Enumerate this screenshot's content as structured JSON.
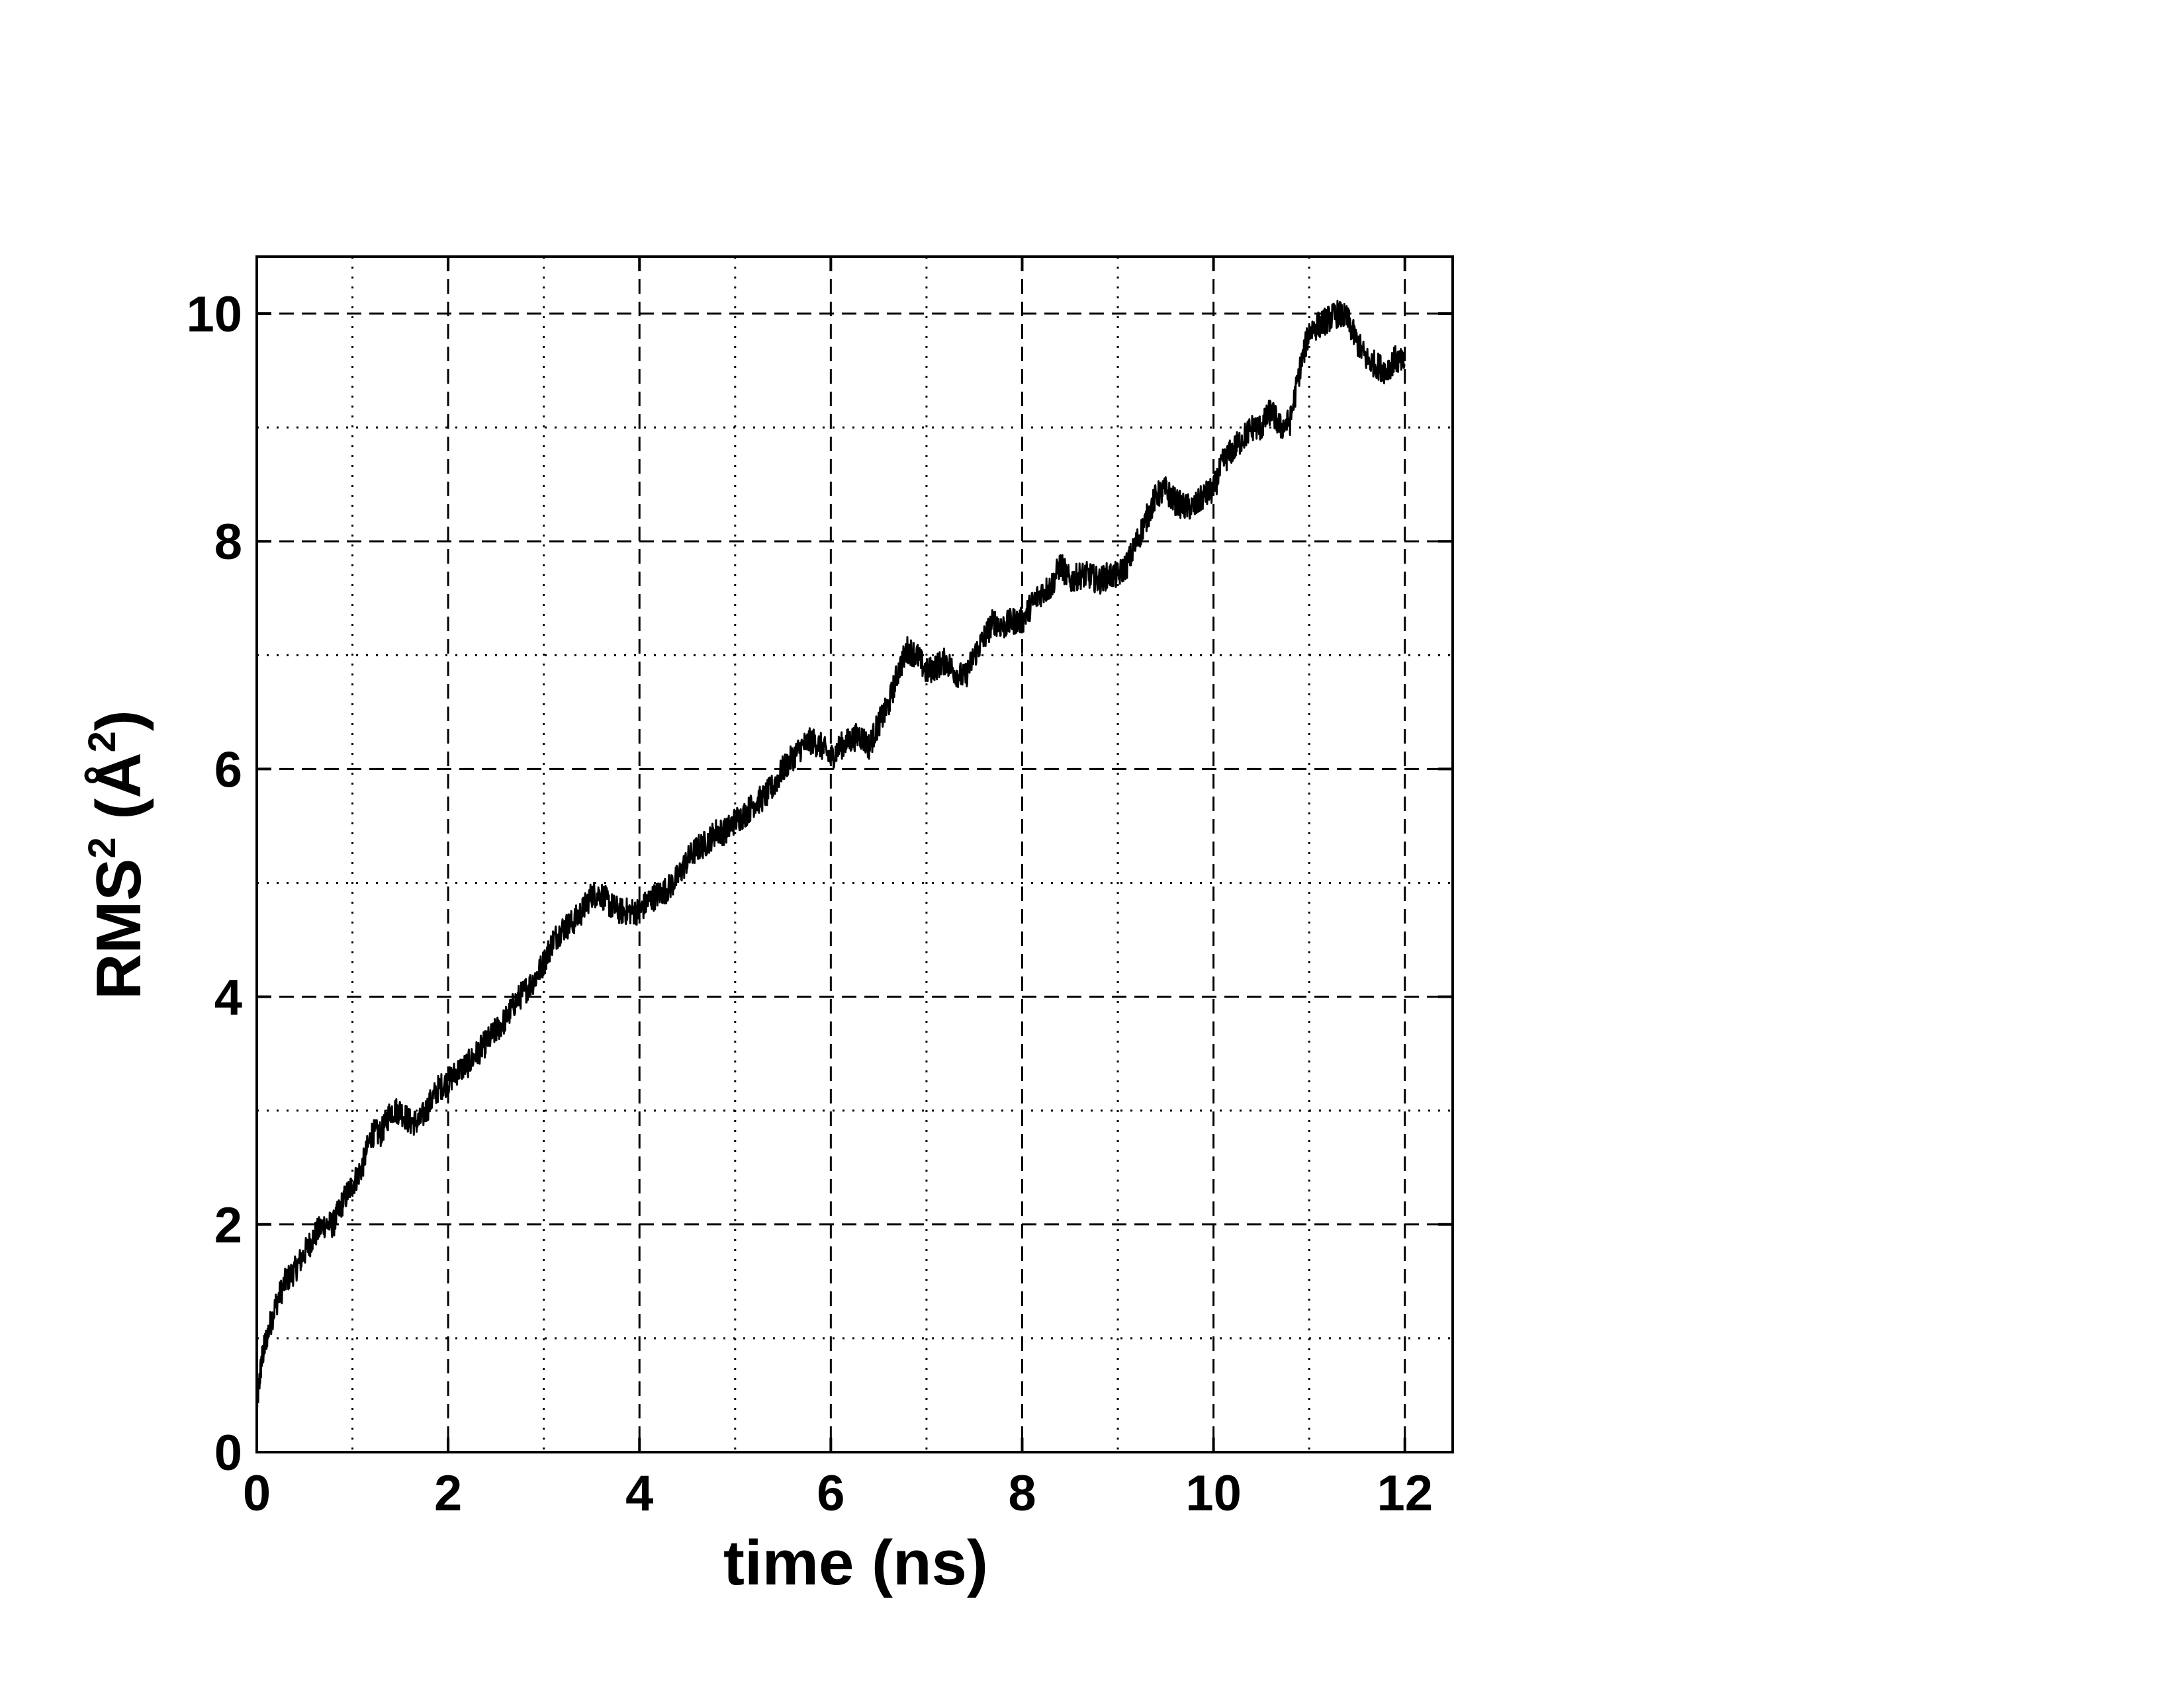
{
  "chart_data": {
    "type": "line",
    "title": "",
    "xlabel": "time (ns)",
    "ylabel": {
      "base": "RMS",
      "base_sup": "2",
      "unit": "Å",
      "unit_sup": "2"
    },
    "xlim": [
      0,
      12.5
    ],
    "ylim": [
      0,
      10.5
    ],
    "x_ticks": [
      0,
      2,
      4,
      6,
      8,
      10,
      12
    ],
    "y_ticks": [
      0,
      2,
      4,
      6,
      8,
      10
    ],
    "x_ticks_minor": [
      1,
      3,
      5,
      7,
      9,
      11
    ],
    "y_ticks_minor": [
      1,
      3,
      5,
      7,
      9
    ],
    "x_tick_labels": [
      "0",
      "2",
      "4",
      "6",
      "8",
      "10",
      "12"
    ],
    "y_tick_labels": [
      "0",
      "2",
      "4",
      "6",
      "8",
      "10"
    ],
    "grid": true,
    "grid_major_style": "dashed",
    "grid_minor_style": "dotted",
    "legend": "none",
    "line_color": "#000000",
    "series": [
      {
        "x": [
          0,
          0.05,
          0.1,
          0.2,
          0.3,
          0.4,
          0.5,
          0.6,
          0.7,
          0.8,
          0.9,
          1.0,
          1.1,
          1.2,
          1.3,
          1.4,
          1.5,
          1.6,
          1.7,
          1.8,
          1.9,
          2.0,
          2.1,
          2.2,
          2.3,
          2.4,
          2.5,
          2.6,
          2.7,
          2.8,
          2.9,
          3.0,
          3.1,
          3.2,
          3.3,
          3.4,
          3.5,
          3.6,
          3.7,
          3.8,
          3.9,
          4.0,
          4.1,
          4.2,
          4.3,
          4.4,
          4.5,
          4.6,
          4.7,
          4.8,
          4.9,
          5.0,
          5.1,
          5.2,
          5.3,
          5.4,
          5.5,
          5.6,
          5.7,
          5.8,
          5.9,
          6.0,
          6.1,
          6.2,
          6.3,
          6.4,
          6.5,
          6.6,
          6.7,
          6.8,
          6.9,
          7.0,
          7.1,
          7.2,
          7.3,
          7.4,
          7.5,
          7.6,
          7.7,
          7.8,
          7.9,
          8.0,
          8.1,
          8.2,
          8.3,
          8.4,
          8.5,
          8.6,
          8.7,
          8.8,
          8.9,
          9.0,
          9.1,
          9.2,
          9.3,
          9.4,
          9.5,
          9.6,
          9.7,
          9.8,
          9.9,
          10.0,
          10.1,
          10.2,
          10.3,
          10.4,
          10.5,
          10.6,
          10.7,
          10.8,
          10.9,
          11.0,
          11.1,
          11.2,
          11.3,
          11.4,
          11.5,
          11.6,
          11.7,
          11.8,
          11.9,
          12.0
        ],
        "y": [
          0.4,
          0.8,
          1.0,
          1.3,
          1.5,
          1.6,
          1.75,
          1.9,
          2.0,
          2.0,
          2.2,
          2.35,
          2.5,
          2.8,
          2.8,
          3.0,
          3.0,
          2.9,
          2.9,
          3.05,
          3.2,
          3.25,
          3.35,
          3.4,
          3.5,
          3.6,
          3.7,
          3.8,
          3.95,
          4.05,
          4.15,
          4.3,
          4.5,
          4.6,
          4.65,
          4.75,
          4.9,
          4.9,
          4.8,
          4.75,
          4.75,
          4.75,
          4.85,
          4.9,
          4.95,
          5.05,
          5.2,
          5.3,
          5.35,
          5.45,
          5.45,
          5.55,
          5.6,
          5.7,
          5.75,
          5.85,
          6.0,
          6.1,
          6.2,
          6.25,
          6.2,
          6.1,
          6.2,
          6.25,
          6.3,
          6.2,
          6.4,
          6.55,
          6.85,
          7.05,
          7.0,
          6.85,
          6.9,
          6.95,
          6.85,
          6.8,
          7.0,
          7.15,
          7.3,
          7.25,
          7.3,
          7.3,
          7.45,
          7.55,
          7.6,
          7.8,
          7.65,
          7.7,
          7.7,
          7.65,
          7.7,
          7.7,
          7.8,
          8.0,
          8.2,
          8.4,
          8.45,
          8.35,
          8.3,
          8.3,
          8.4,
          8.45,
          8.7,
          8.8,
          8.9,
          9.0,
          9.0,
          9.15,
          9.0,
          9.05,
          9.5,
          9.85,
          9.9,
          9.95,
          10.0,
          9.95,
          9.75,
          9.6,
          9.55,
          9.5,
          9.6,
          9.55
        ],
        "noise_amplitude": 0.12
      }
    ]
  }
}
